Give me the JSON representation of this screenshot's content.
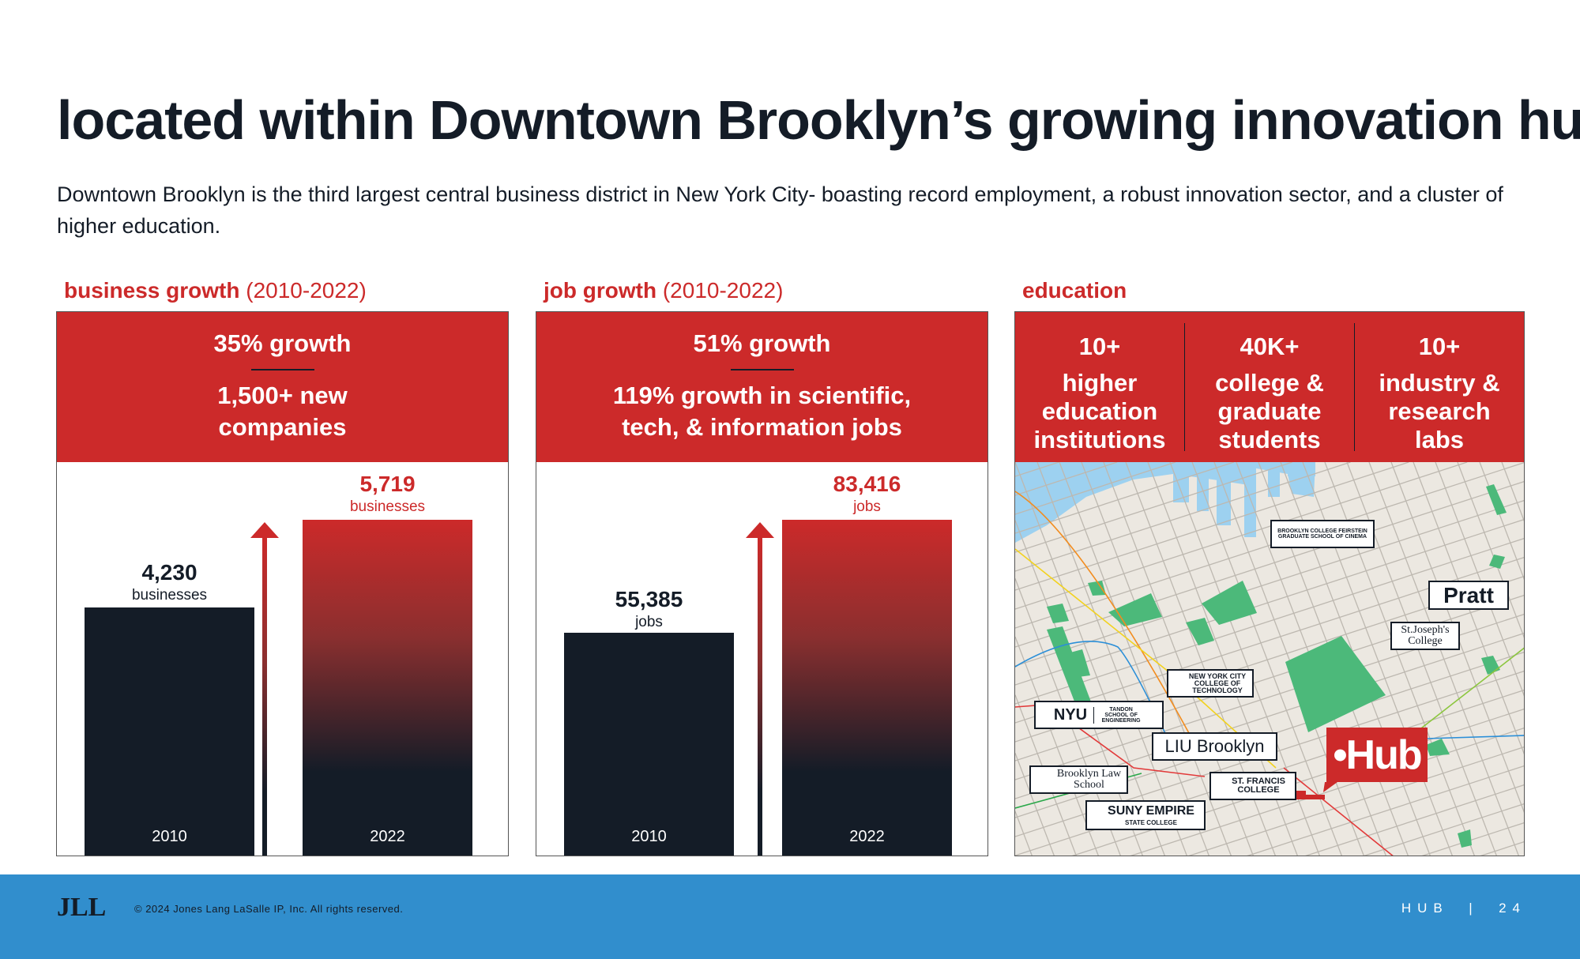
{
  "title": "located within Downtown Brooklyn’s growing innovation hub",
  "subtitle": "Downtown Brooklyn is the third largest central business district in New York City- boasting record employment, a robust innovation sector, and a cluster of higher education.",
  "colors": {
    "accent": "#cc2a2a",
    "navy": "#141c27",
    "footer": "#318ecd",
    "park": "#4cb97a",
    "water": "#9dd1f0",
    "land": "#ece8e1"
  },
  "business": {
    "label": "business growth",
    "range": "(2010-2022)",
    "headline": "35% growth",
    "detail1": "1,500+ new",
    "detail2": "companies",
    "bars": [
      {
        "year": "2010",
        "value": "4,230",
        "unit": "businesses",
        "num": 4230
      },
      {
        "year": "2022",
        "value": "5,719",
        "unit": "businesses",
        "num": 5719
      }
    ]
  },
  "jobs": {
    "label": "job growth",
    "range": "(2010-2022)",
    "headline": "51% growth",
    "detail1": "119% growth in scientific,",
    "detail2": "tech, & information jobs",
    "bars": [
      {
        "year": "2010",
        "value": "55,385",
        "unit": "jobs",
        "num": 55385
      },
      {
        "year": "2022",
        "value": "83,416",
        "unit": "jobs",
        "num": 83416
      }
    ]
  },
  "education": {
    "label": "education",
    "stats": [
      {
        "num": "10+",
        "l1": "higher",
        "l2": "education",
        "l3": "institutions"
      },
      {
        "num": "40K+",
        "l1": "college &",
        "l2": "graduate",
        "l3": "students"
      },
      {
        "num": "10+",
        "l1": "industry &",
        "l2": "research",
        "l3": "labs"
      }
    ],
    "map": {
      "labels": {
        "feirstein": "BROOKLYN COLLEGE FEIRSTEIN GRADUATE SCHOOL OF CINEMA",
        "pratt": "Pratt",
        "stjoseph": "St.Joseph's College",
        "citytech": "NEW YORK CITY COLLEGE OF TECHNOLOGY",
        "nyu": "NYU",
        "nyu_sub": "TANDON SCHOOL OF ENGINEERING",
        "liu": "LIU Brooklyn",
        "bls": "Brooklyn Law School",
        "sfc": "ST. FRANCIS COLLEGE",
        "suny": "SUNY EMPIRE",
        "suny_sub": "STATE COLLEGE",
        "hub": "•Hub"
      }
    }
  },
  "footer": {
    "logo": "JLL",
    "copyright": "© 2024 Jones Lang LaSalle IP, Inc. All rights reserved.",
    "section": "HUB",
    "page": "24"
  }
}
